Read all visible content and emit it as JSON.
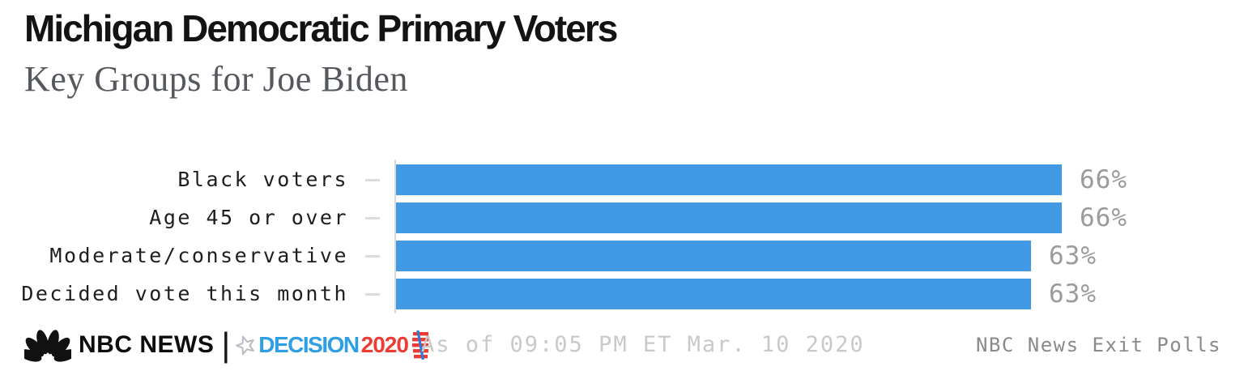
{
  "header": {
    "title": "Michigan Democratic Primary Voters",
    "subtitle": "Key Groups for Joe Biden"
  },
  "chart_data": {
    "type": "bar",
    "orientation": "horizontal",
    "title": "Michigan Democratic Primary Voters",
    "subtitle": "Key Groups for Joe Biden",
    "categories": [
      "Black voters",
      "Age 45 or over",
      "Moderate/conservative",
      "Decided vote this month"
    ],
    "values": [
      66,
      66,
      63,
      63
    ],
    "value_labels": [
      "66%",
      "66%",
      "63%",
      "63%"
    ],
    "unit": "%",
    "xlim": [
      0,
      100
    ],
    "grid": false,
    "bar_color": "#4299e3",
    "value_label_color": "#9b9b9b"
  },
  "footer": {
    "brand": {
      "peacock_icon": "nbc-peacock",
      "name": "NBC NEWS",
      "separator": "|",
      "star_icon": "star-outline",
      "decision": "DECISION",
      "year": "2020",
      "flag_icon": "flag-stripes"
    },
    "timestamp": "As of 09:05 PM ET Mar. 10 2020",
    "source": "NBC News Exit Polls"
  },
  "colors": {
    "bar": "#4299e3",
    "decision_blue": "#2f9fe5",
    "decision_red": "#ee3b33",
    "axis_line": "#d8d8d8",
    "tick": "#dcdcdc",
    "timestamp_text": "#c9c9c9",
    "source_text": "#8a8a8a"
  }
}
